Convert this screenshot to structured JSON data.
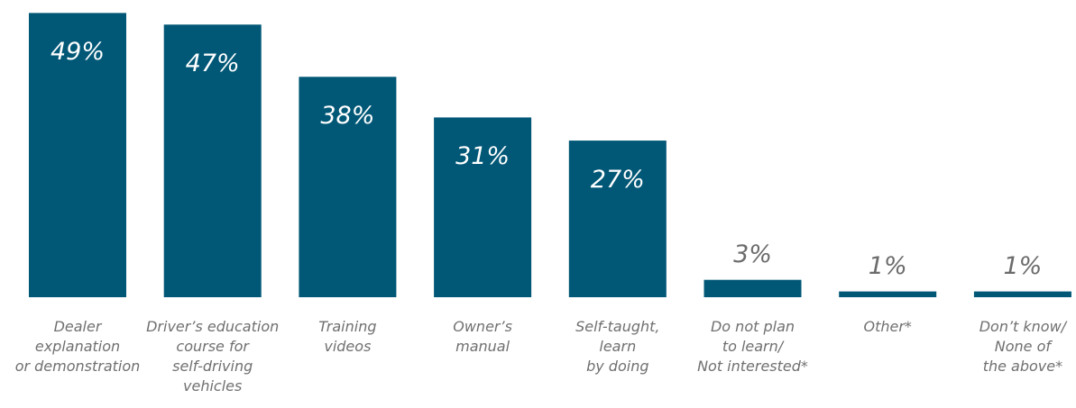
{
  "chart_data": {
    "type": "bar",
    "categories": [
      "Dealer\nexplanation\nor demonstration",
      "Driver’s education\ncourse for\nself-driving\nvehicles",
      "Training\nvideos",
      "Owner’s\nmanual",
      "Self-taught,\nlearn\nby doing",
      "Do not plan\nto learn/\nNot interested*",
      "Other*",
      "Don’t know/\nNone of\nthe above*"
    ],
    "values": [
      49,
      47,
      38,
      31,
      27,
      3,
      1,
      1
    ],
    "value_labels": [
      "49%",
      "47%",
      "38%",
      "31%",
      "27%",
      "3%",
      "1%",
      "1%"
    ],
    "ylim": [
      0,
      50
    ],
    "grid": false,
    "legend": "none",
    "bar_color": "#005776",
    "label_color": "#707070"
  }
}
